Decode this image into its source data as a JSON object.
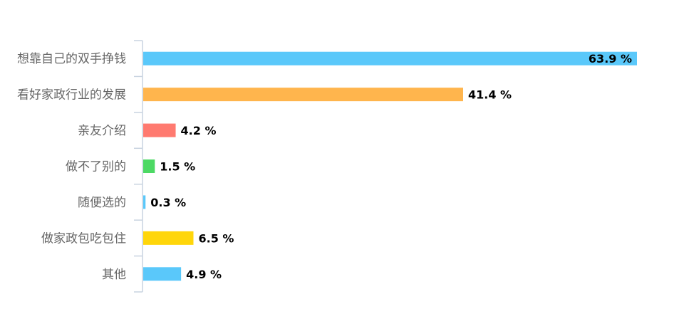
{
  "chart_data": {
    "type": "bar",
    "orientation": "horizontal",
    "categories": [
      "想靠自己的双手挣钱",
      "看好家政行业的发展",
      "亲友介绍",
      "做不了别的",
      "随便选的",
      "做家政包吃包住",
      "其他"
    ],
    "values": [
      63.9,
      41.4,
      4.2,
      1.5,
      0.3,
      6.5,
      4.9
    ],
    "value_labels": [
      "63.9 %",
      "41.4 %",
      "4.2 %",
      "1.5 %",
      "0.3 %",
      "6.5 %",
      "4.9 %"
    ],
    "colors": [
      "#5ac8fa",
      "#ffb54d",
      "#ff7a70",
      "#4cd964",
      "#5ac8fa",
      "#ffd60a",
      "#5ac8fa"
    ],
    "xlim": [
      0,
      63.9
    ],
    "grid": false,
    "legend": "none"
  }
}
